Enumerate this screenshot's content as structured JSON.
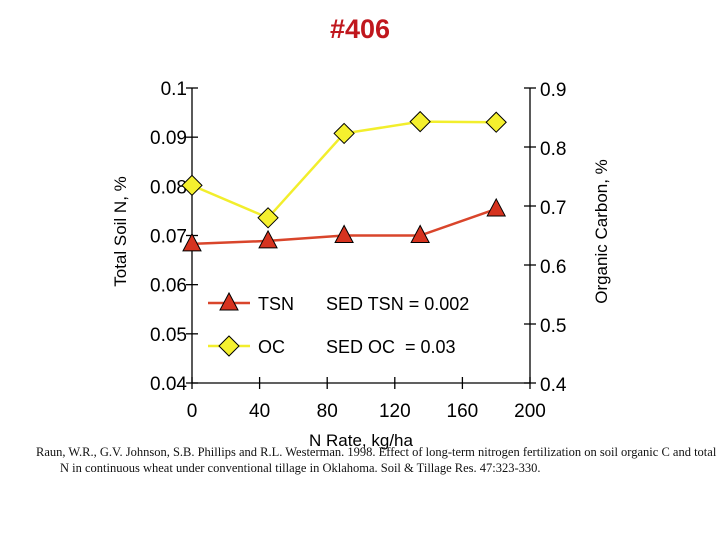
{
  "title": "#406",
  "citation": "Raun, W.R., G.V. Johnson, S.B. Phillips and R.L. Westerman. 1998. Effect of long-term nitrogen fertilization on soil organic C and total N in continuous wheat under conventional tillage in Oklahoma. Soil & Tillage Res. 47:323-330.",
  "colors": {
    "title": "#c0171d",
    "tsn_line": "#d9452b",
    "tsn_marker": "#d6331f",
    "oc_line": "#f2ee2c",
    "oc_marker": "#f5f02e"
  },
  "chart_data": {
    "type": "line",
    "xlabel": "N Rate, kg/ha",
    "ylabel": "Total Soil N, %",
    "y2label": "Organic Carbon, %",
    "x_ticks": [
      "0",
      "40",
      "80",
      "120",
      "160",
      "200"
    ],
    "y_ticks": [
      "0.04",
      "0.05",
      "0.06",
      "0.07",
      "0.08",
      "0.09",
      "0.1"
    ],
    "y2_ticks": [
      "0.4",
      "0.5",
      "0.6",
      "0.7",
      "0.8",
      "0.9"
    ],
    "xlim": [
      0,
      200
    ],
    "ylim": [
      0.04,
      0.1
    ],
    "y2lim": [
      0.4,
      0.9
    ],
    "series": [
      {
        "name": "TSN",
        "axis": "left",
        "marker": "triangle",
        "x": [
          0,
          45,
          90,
          135,
          180
        ],
        "values": [
          0.0683,
          0.0689,
          0.07,
          0.07,
          0.0754
        ]
      },
      {
        "name": "OC",
        "axis": "right",
        "marker": "diamond",
        "x": [
          0,
          45,
          90,
          135,
          180
        ],
        "values": [
          0.735,
          0.68,
          0.823,
          0.843,
          0.842
        ]
      }
    ],
    "legend": {
      "position": "bottom-center",
      "entries": [
        "TSN",
        "OC"
      ]
    },
    "annotations": [
      "SED TSN = 0.002",
      "SED OC  = 0.03"
    ]
  }
}
